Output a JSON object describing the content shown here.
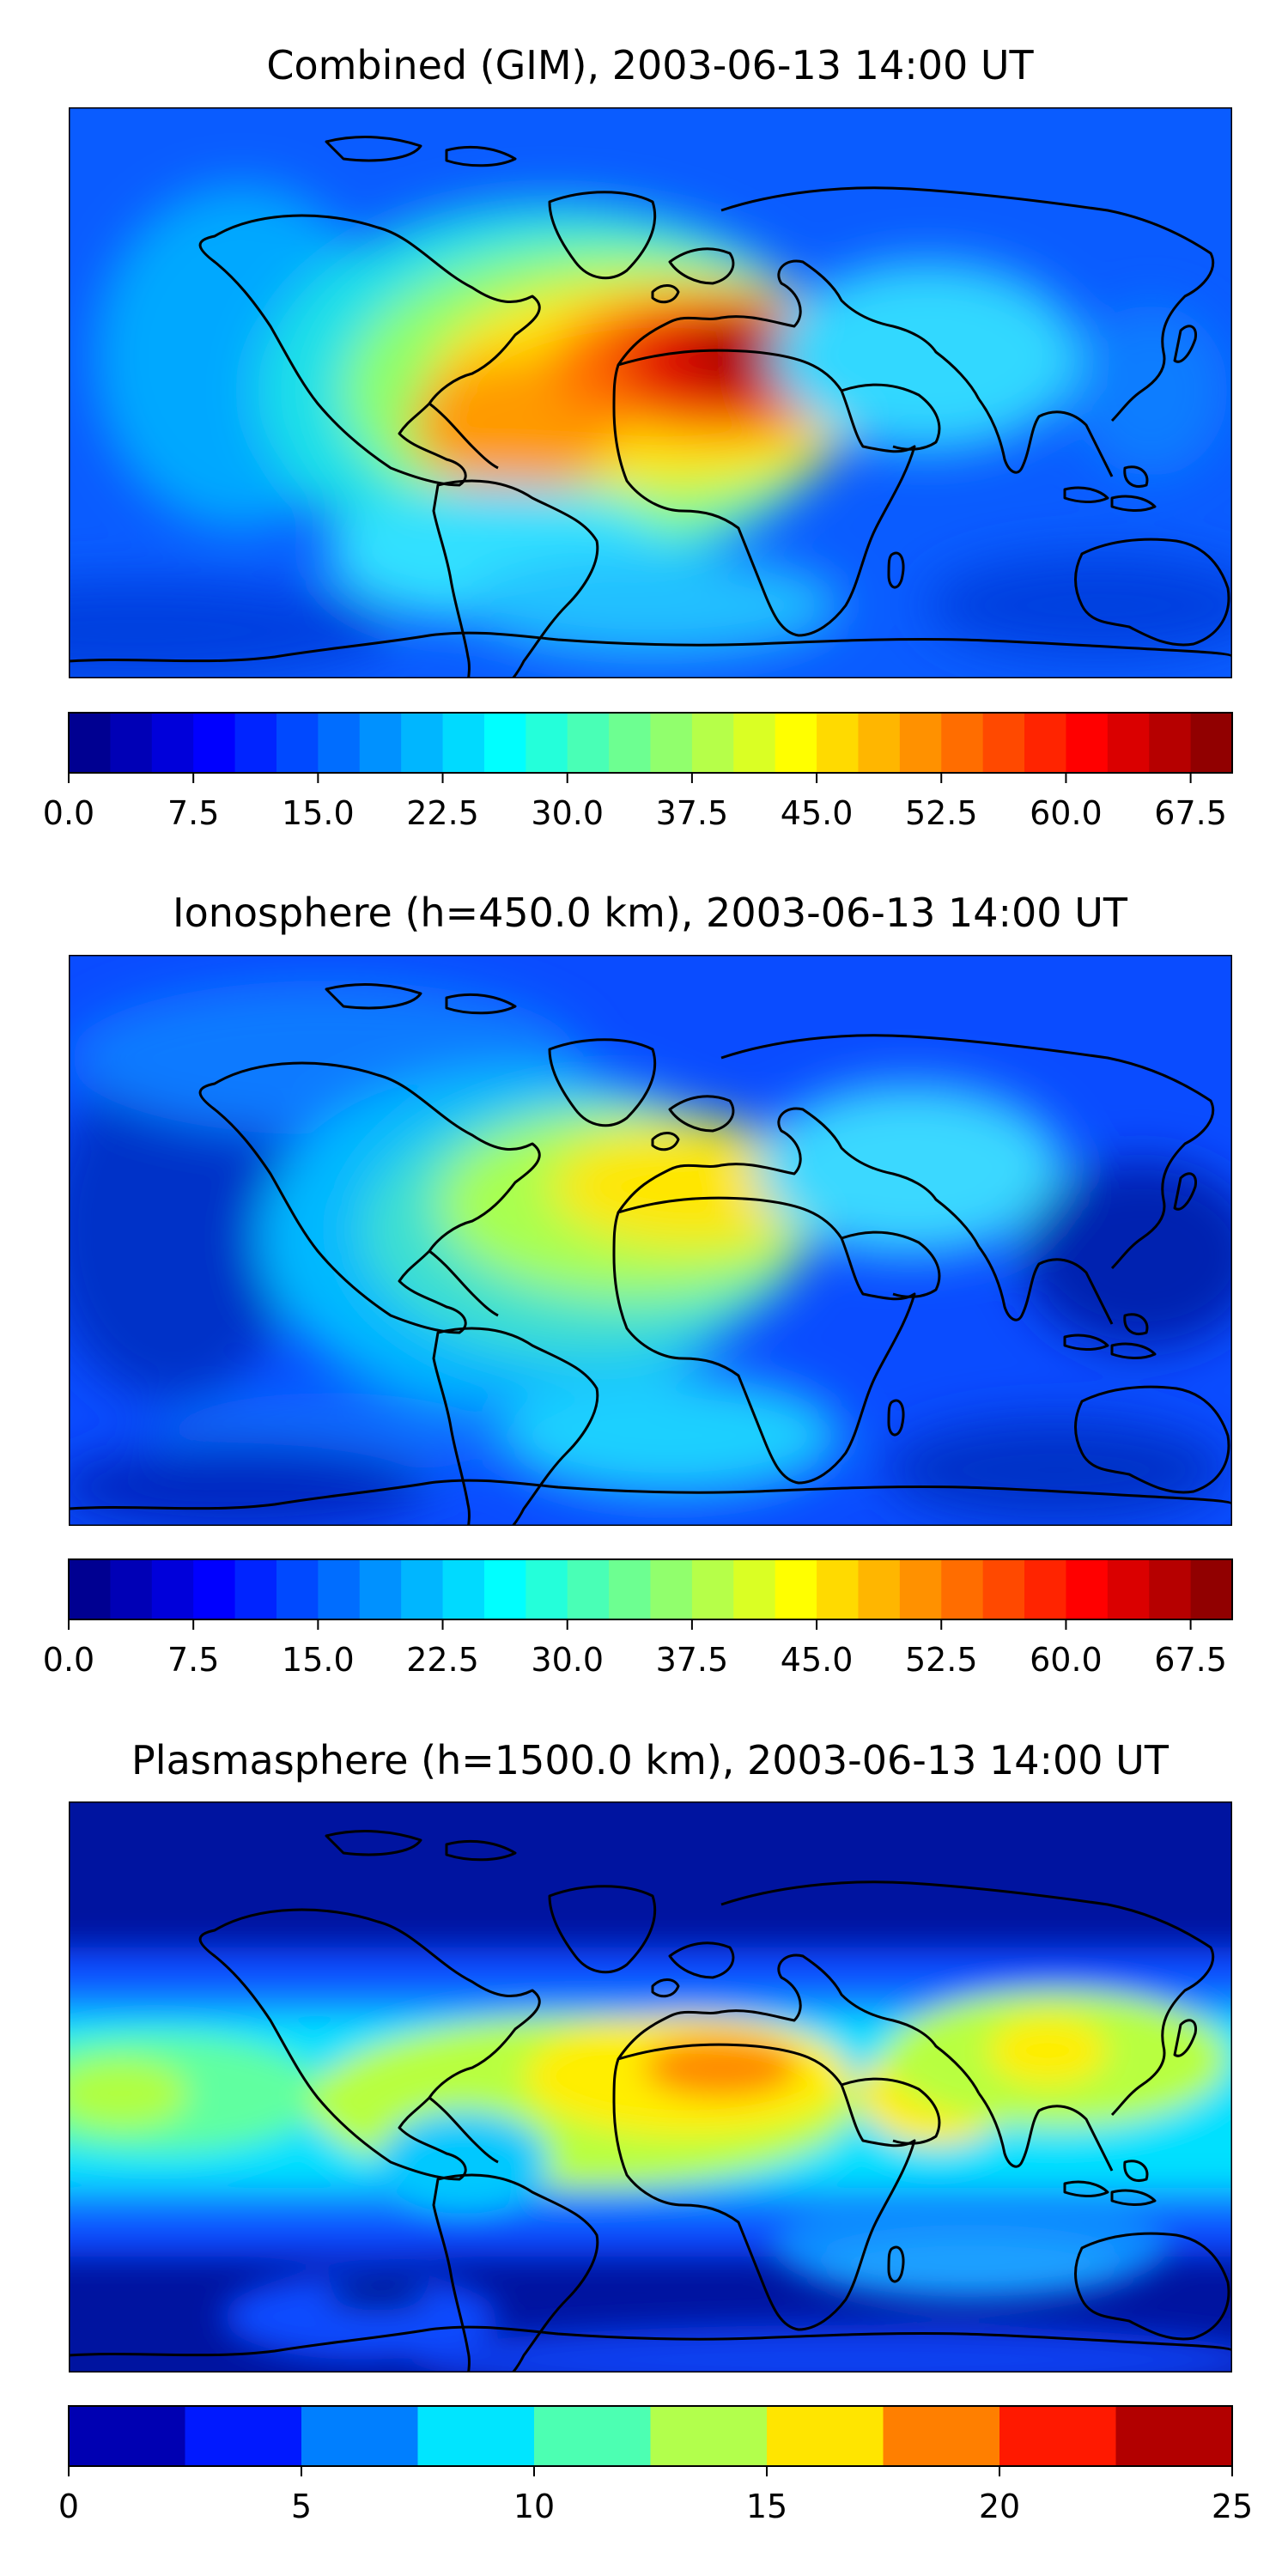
{
  "panels": [
    {
      "title": "Combined (GIM), 2003-06-13 14:00 UT",
      "colorbar": {
        "vmin": 0,
        "vmax": 70,
        "n_levels": 28,
        "ticks": [
          "0.0",
          "7.5",
          "15.0",
          "22.5",
          "30.0",
          "37.5",
          "45.0",
          "52.5",
          "60.0",
          "67.5"
        ],
        "tick_values": [
          0,
          7.5,
          15,
          22.5,
          30,
          37.5,
          45,
          52.5,
          60,
          67.5
        ]
      }
    },
    {
      "title": "Ionosphere  (h=450.0 km), 2003-06-13 14:00 UT",
      "colorbar": {
        "vmin": 0,
        "vmax": 70,
        "n_levels": 28,
        "ticks": [
          "0.0",
          "7.5",
          "15.0",
          "22.5",
          "30.0",
          "37.5",
          "45.0",
          "52.5",
          "60.0",
          "67.5"
        ],
        "tick_values": [
          0,
          7.5,
          15,
          22.5,
          30,
          37.5,
          45,
          52.5,
          60,
          67.5
        ]
      }
    },
    {
      "title": "Plasmasphere (h=1500.0 km), 2003-06-13 14:00 UT",
      "colorbar": {
        "vmin": 0,
        "vmax": 25,
        "n_levels": 10,
        "ticks": [
          "0",
          "5",
          "10",
          "15",
          "20",
          "25"
        ],
        "tick_values": [
          0,
          5,
          10,
          15,
          20,
          25
        ]
      }
    }
  ],
  "colors": {
    "jet": [
      "#00007f",
      "#0000ff",
      "#007fff",
      "#00ffff",
      "#7fff7f",
      "#ffff00",
      "#ff7f00",
      "#ff0000",
      "#7f0000"
    ],
    "ocean_background_combined": "#0a5cff",
    "ocean_background_iono": "#0a4cff",
    "ocean_background_plasma": "#1030f0",
    "coastline": "#000000"
  }
}
